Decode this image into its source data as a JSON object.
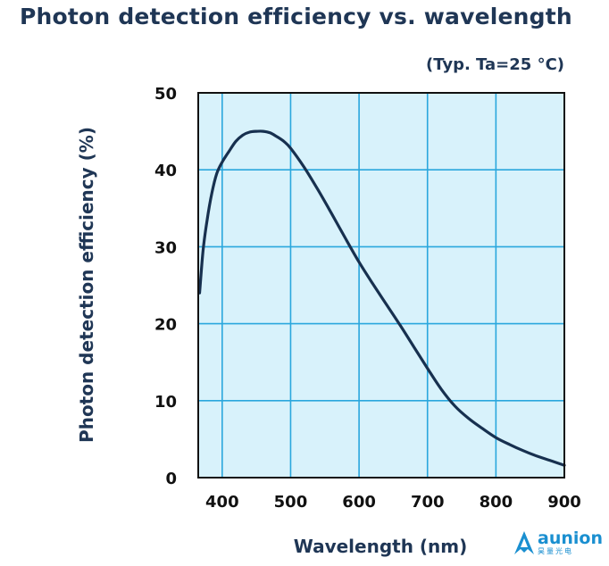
{
  "title": "Photon detection efficiency vs. wavelength",
  "condition": "(Typ. Ta=25 °C)",
  "brand": {
    "name": "aunion",
    "subtitle": "昊量光电"
  },
  "colors": {
    "plot_background": "#d8f2fb",
    "grid": "#2aa7dd",
    "curve": "#17304f",
    "text": "#1f3655",
    "brand": "#1a8fd0"
  },
  "chart_data": {
    "type": "line",
    "title": "Photon detection efficiency vs. wavelength",
    "xlabel": "Wavelength (nm)",
    "ylabel": "Photon detection efficiency (%)",
    "xlim": [
      365,
      900
    ],
    "ylim": [
      0,
      50
    ],
    "xticks": [
      400,
      500,
      600,
      700,
      800,
      900
    ],
    "yticks": [
      0,
      10,
      20,
      30,
      40,
      50
    ],
    "grid": true,
    "series": [
      {
        "x": [
          367,
          372,
          378,
          385,
          392,
          400,
          410,
          420,
          430,
          440,
          450,
          460,
          470,
          480,
          490,
          500,
          520,
          540,
          560,
          580,
          600,
          620,
          640,
          660,
          680,
          700,
          720,
          740,
          760,
          780,
          800,
          820,
          840,
          860,
          880,
          900
        ],
        "y": [
          24,
          29.5,
          33.5,
          37,
          39.5,
          41,
          42.4,
          43.7,
          44.5,
          44.9,
          45,
          45,
          44.8,
          44.3,
          43.7,
          42.8,
          40.3,
          37.4,
          34.3,
          31.1,
          28,
          25.2,
          22.5,
          19.8,
          17,
          14.2,
          11.5,
          9.3,
          7.7,
          6.4,
          5.2,
          4.3,
          3.5,
          2.8,
          2.2,
          1.6
        ]
      }
    ]
  }
}
